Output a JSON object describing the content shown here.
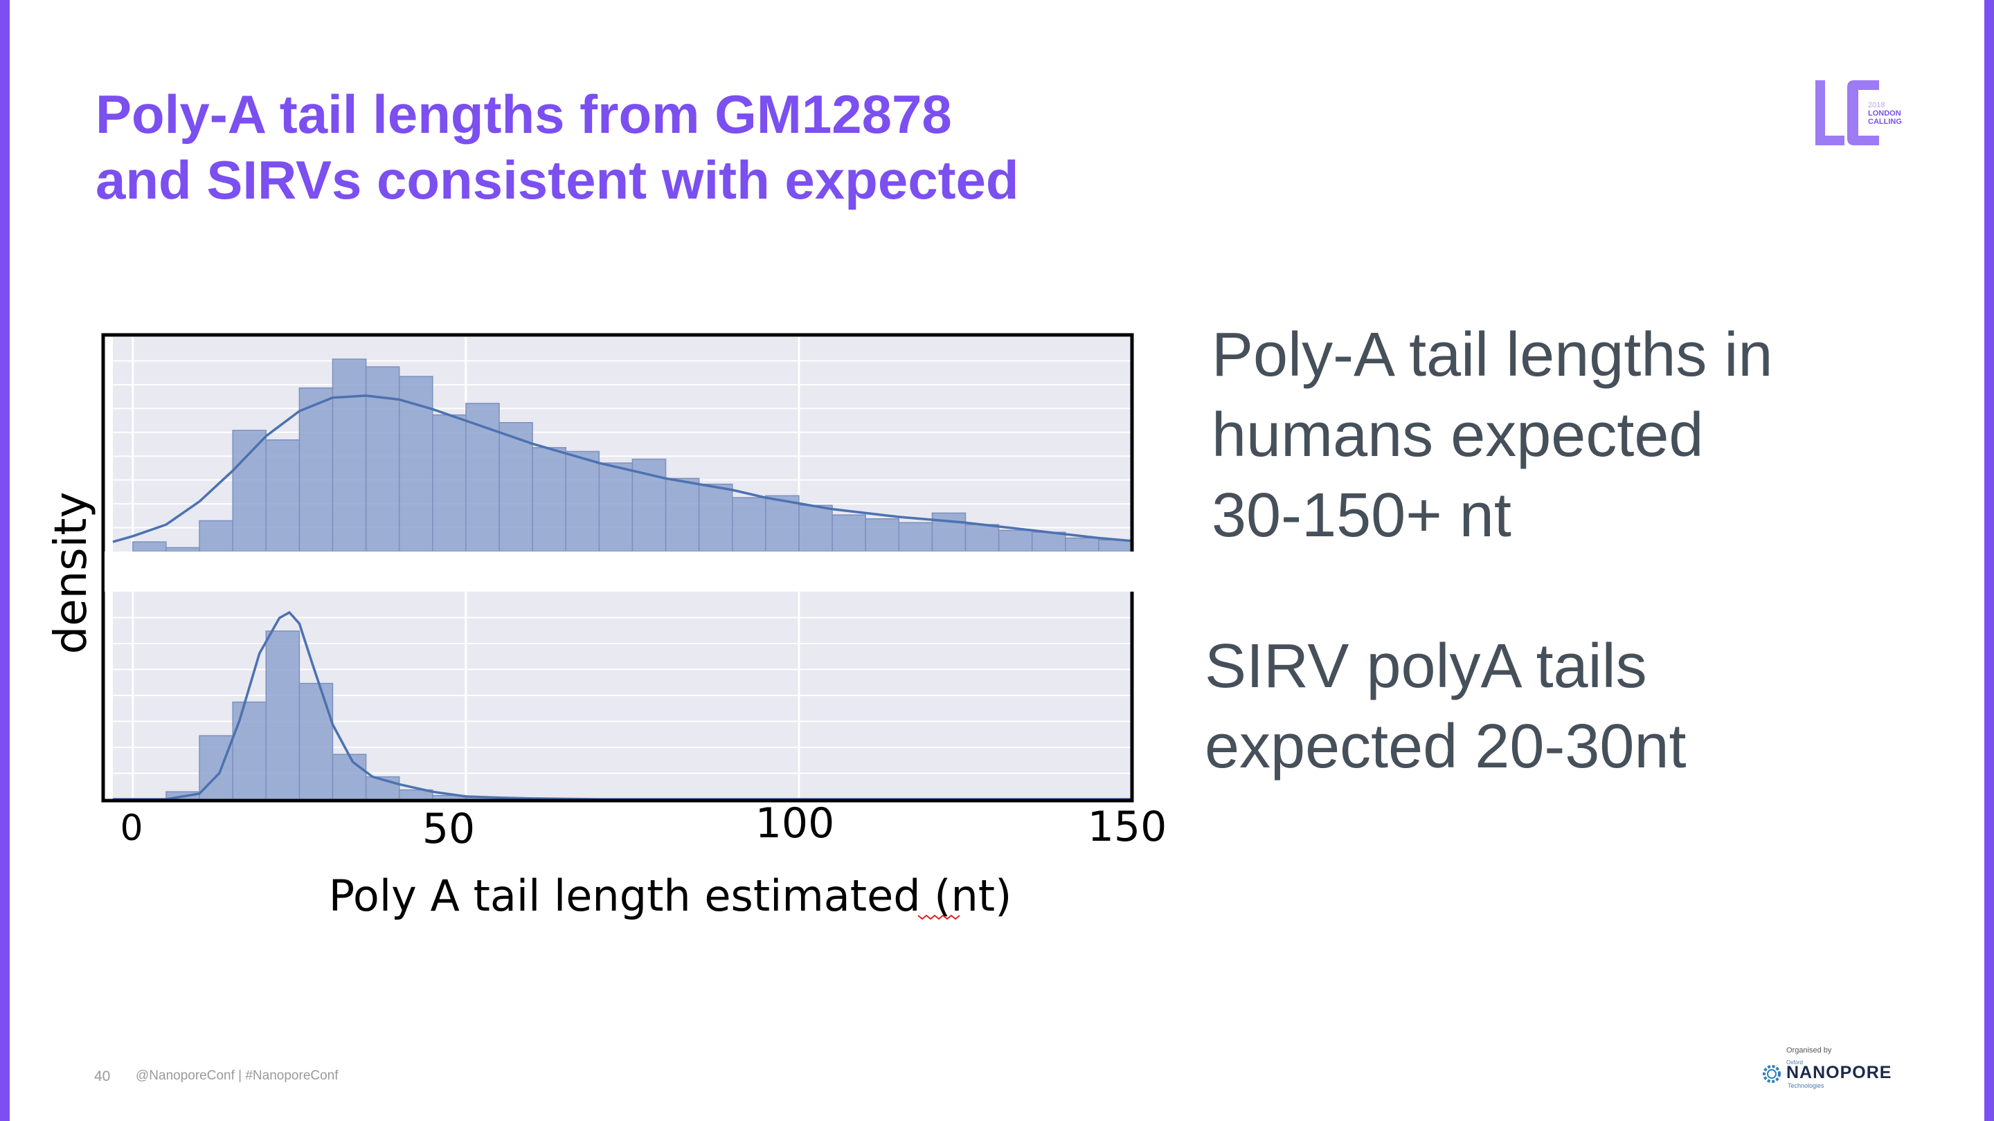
{
  "slide": {
    "title_lines": [
      "Poly-A tail lengths from GM12878",
      "and SIRVs consistent with expected"
    ],
    "bullets": [
      {
        "lines": [
          "Poly-A tail lengths in",
          "humans expected",
          "30-150+ nt"
        ]
      },
      {
        "lines": [
          "SIRV polyA tails",
          "expected 20-30nt"
        ]
      }
    ],
    "page_number": "40",
    "footer_handle": "@NanoporeConf | #NanoporeConf",
    "logo": {
      "letters": "LC",
      "year": "2018",
      "line1": "LONDON",
      "line2": "CALLING"
    },
    "organiser": {
      "label": "Organised by",
      "oxford": "Oxford",
      "name": "NANOPORE",
      "sub": "Technologies"
    },
    "accent_color": "#7b4ff0",
    "text_color": "#46505a"
  },
  "chart_data": {
    "type": "histogram",
    "xlabel": "Poly A tail length estimated (nt)",
    "ylabel": "density",
    "xlim": [
      -3,
      150
    ],
    "x_ticks": [
      "0",
      "50",
      "100",
      "150"
    ],
    "x_tick_values": [
      0,
      50,
      100,
      150
    ],
    "bin_width": 5,
    "bar_color": "#8fa3cf",
    "line_color": "#4c72b0",
    "panel_background": "#e8e9f1",
    "grid": true,
    "panels": [
      {
        "name": "GM12878",
        "bin_starts": [
          0,
          5,
          10,
          15,
          20,
          25,
          30,
          35,
          40,
          45,
          50,
          55,
          60,
          65,
          70,
          75,
          80,
          85,
          90,
          95,
          100,
          105,
          110,
          115,
          120,
          125,
          130,
          135,
          140,
          145
        ],
        "values": [
          0.05,
          0.02,
          0.16,
          0.63,
          0.58,
          0.85,
          1.0,
          0.96,
          0.91,
          0.71,
          0.77,
          0.67,
          0.54,
          0.52,
          0.46,
          0.48,
          0.38,
          0.35,
          0.28,
          0.29,
          0.24,
          0.19,
          0.17,
          0.15,
          0.2,
          0.14,
          0.11,
          0.1,
          0.07,
          0.06
        ],
        "kde_x": [
          -3,
          0,
          5,
          10,
          15,
          20,
          25,
          30,
          35,
          40,
          45,
          50,
          55,
          60,
          65,
          70,
          75,
          80,
          85,
          90,
          95,
          100,
          105,
          110,
          115,
          120,
          125,
          130,
          135,
          140,
          145,
          150
        ],
        "kde_y": [
          0.05,
          0.08,
          0.14,
          0.26,
          0.42,
          0.6,
          0.73,
          0.8,
          0.81,
          0.79,
          0.74,
          0.68,
          0.62,
          0.56,
          0.51,
          0.46,
          0.42,
          0.38,
          0.35,
          0.32,
          0.28,
          0.25,
          0.22,
          0.2,
          0.18,
          0.165,
          0.15,
          0.13,
          0.11,
          0.09,
          0.07,
          0.055
        ]
      },
      {
        "name": "SIRV",
        "bin_starts": [
          5,
          10,
          15,
          20,
          25,
          30,
          35,
          40,
          45,
          50
        ],
        "values": [
          0.04,
          0.34,
          0.52,
          0.9,
          0.62,
          0.24,
          0.12,
          0.05,
          0.02,
          0.01
        ],
        "kde_x": [
          -3,
          5,
          10,
          13,
          16,
          19,
          22,
          23.5,
          25,
          27,
          30,
          33,
          36,
          40,
          45,
          50,
          55,
          60,
          70,
          150
        ],
        "kde_y": [
          0,
          0,
          0.03,
          0.14,
          0.42,
          0.78,
          0.97,
          1.0,
          0.94,
          0.72,
          0.4,
          0.2,
          0.12,
          0.08,
          0.04,
          0.015,
          0.008,
          0.004,
          0,
          0
        ]
      }
    ]
  }
}
